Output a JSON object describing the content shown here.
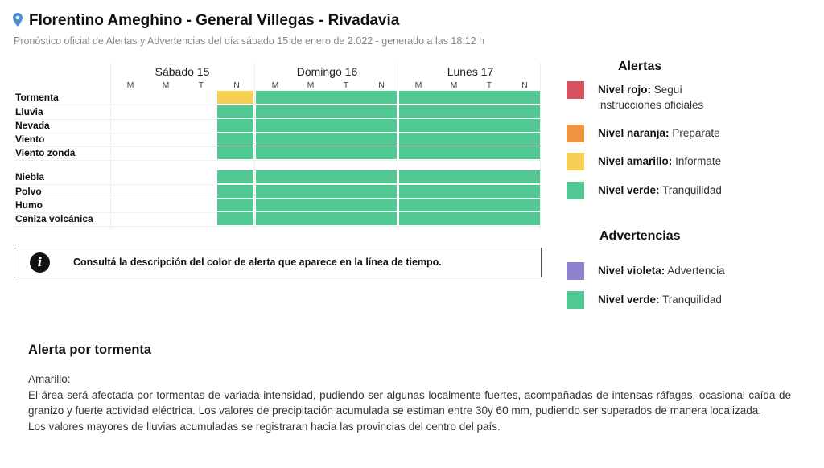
{
  "header": {
    "title": "Florentino Ameghino - General Villegas - Rivadavia",
    "subtitle": "Pronóstico oficial de Alertas y Advertencias del día sábado 15 de enero de 2.022 - generado a las 18:12 h"
  },
  "timeline": {
    "days": [
      {
        "label": "Sábado 15",
        "periods": [
          "M",
          "M",
          "T",
          "N"
        ]
      },
      {
        "label": "Domingo 16",
        "periods": [
          "M",
          "M",
          "T",
          "N"
        ]
      },
      {
        "label": "Lunes 17",
        "periods": [
          "M",
          "M",
          "T",
          "N"
        ]
      }
    ],
    "rows": [
      {
        "label": "Tormenta",
        "levels": [
          null,
          null,
          null,
          "amarillo",
          "verde",
          "verde",
          "verde",
          "verde",
          "verde",
          "verde",
          "verde",
          "verde"
        ]
      },
      {
        "label": "Lluvia",
        "levels": [
          null,
          null,
          null,
          "verde",
          "verde",
          "verde",
          "verde",
          "verde",
          "verde",
          "verde",
          "verde",
          "verde"
        ]
      },
      {
        "label": "Nevada",
        "levels": [
          null,
          null,
          null,
          "verde",
          "verde",
          "verde",
          "verde",
          "verde",
          "verde",
          "verde",
          "verde",
          "verde"
        ]
      },
      {
        "label": "Viento",
        "levels": [
          null,
          null,
          null,
          "verde",
          "verde",
          "verde",
          "verde",
          "verde",
          "verde",
          "verde",
          "verde",
          "verde"
        ]
      },
      {
        "label": "Viento zonda",
        "levels": [
          null,
          null,
          null,
          "verde",
          "verde",
          "verde",
          "verde",
          "verde",
          "verde",
          "verde",
          "verde",
          "verde"
        ]
      },
      {
        "label": "Niebla",
        "levels": [
          null,
          null,
          null,
          "verde",
          "verde",
          "verde",
          "verde",
          "verde",
          "verde",
          "verde",
          "verde",
          "verde"
        ]
      },
      {
        "label": "Polvo",
        "levels": [
          null,
          null,
          null,
          "verde",
          "verde",
          "verde",
          "verde",
          "verde",
          "verde",
          "verde",
          "verde",
          "verde"
        ]
      },
      {
        "label": "Humo",
        "levels": [
          null,
          null,
          null,
          "verde",
          "verde",
          "verde",
          "verde",
          "verde",
          "verde",
          "verde",
          "verde",
          "verde"
        ]
      },
      {
        "label": "Ceniza volcánica",
        "levels": [
          null,
          null,
          null,
          "verde",
          "verde",
          "verde",
          "verde",
          "verde",
          "verde",
          "verde",
          "verde",
          "verde"
        ]
      }
    ]
  },
  "colors": {
    "rojo": "#d9505f",
    "naranja": "#ef9540",
    "amarillo": "#f7cf55",
    "verde": "#52c893",
    "violeta": "#8f82cc"
  },
  "info": {
    "text": "Consultá la descripción del color de alerta que aparece en la línea de tiempo."
  },
  "legend": {
    "alertas_title": "Alertas",
    "alertas": [
      {
        "level": "rojo",
        "name": "Nivel rojo:",
        "desc": "Seguí instrucciones oficiales"
      },
      {
        "level": "naranja",
        "name": "Nivel naranja:",
        "desc": "Preparate"
      },
      {
        "level": "amarillo",
        "name": "Nivel amarillo:",
        "desc": "Informate"
      },
      {
        "level": "verde",
        "name": "Nivel verde:",
        "desc": "Tranquilidad"
      }
    ],
    "advertencias_title": "Advertencias",
    "advertencias": [
      {
        "level": "violeta",
        "name": "Nivel violeta:",
        "desc": "Advertencia"
      },
      {
        "level": "verde",
        "name": "Nivel verde:",
        "desc": "Tranquilidad"
      }
    ]
  },
  "description": {
    "title": "Alerta por tormenta",
    "lines": [
      "Amarillo:",
      "El área será afectada por tormentas de variada intensidad, pudiendo ser algunas localmente fuertes, acompañadas de intensas ráfagas, ocasional caída de granizo y fuerte actividad eléctrica. Los valores de precipitación acumulada se estiman entre 30y 60 mm, pudiendo ser superados de manera localizada.",
      "Los valores mayores de lluvias acumuladas se registraran hacia las provincias del centro del país."
    ]
  }
}
